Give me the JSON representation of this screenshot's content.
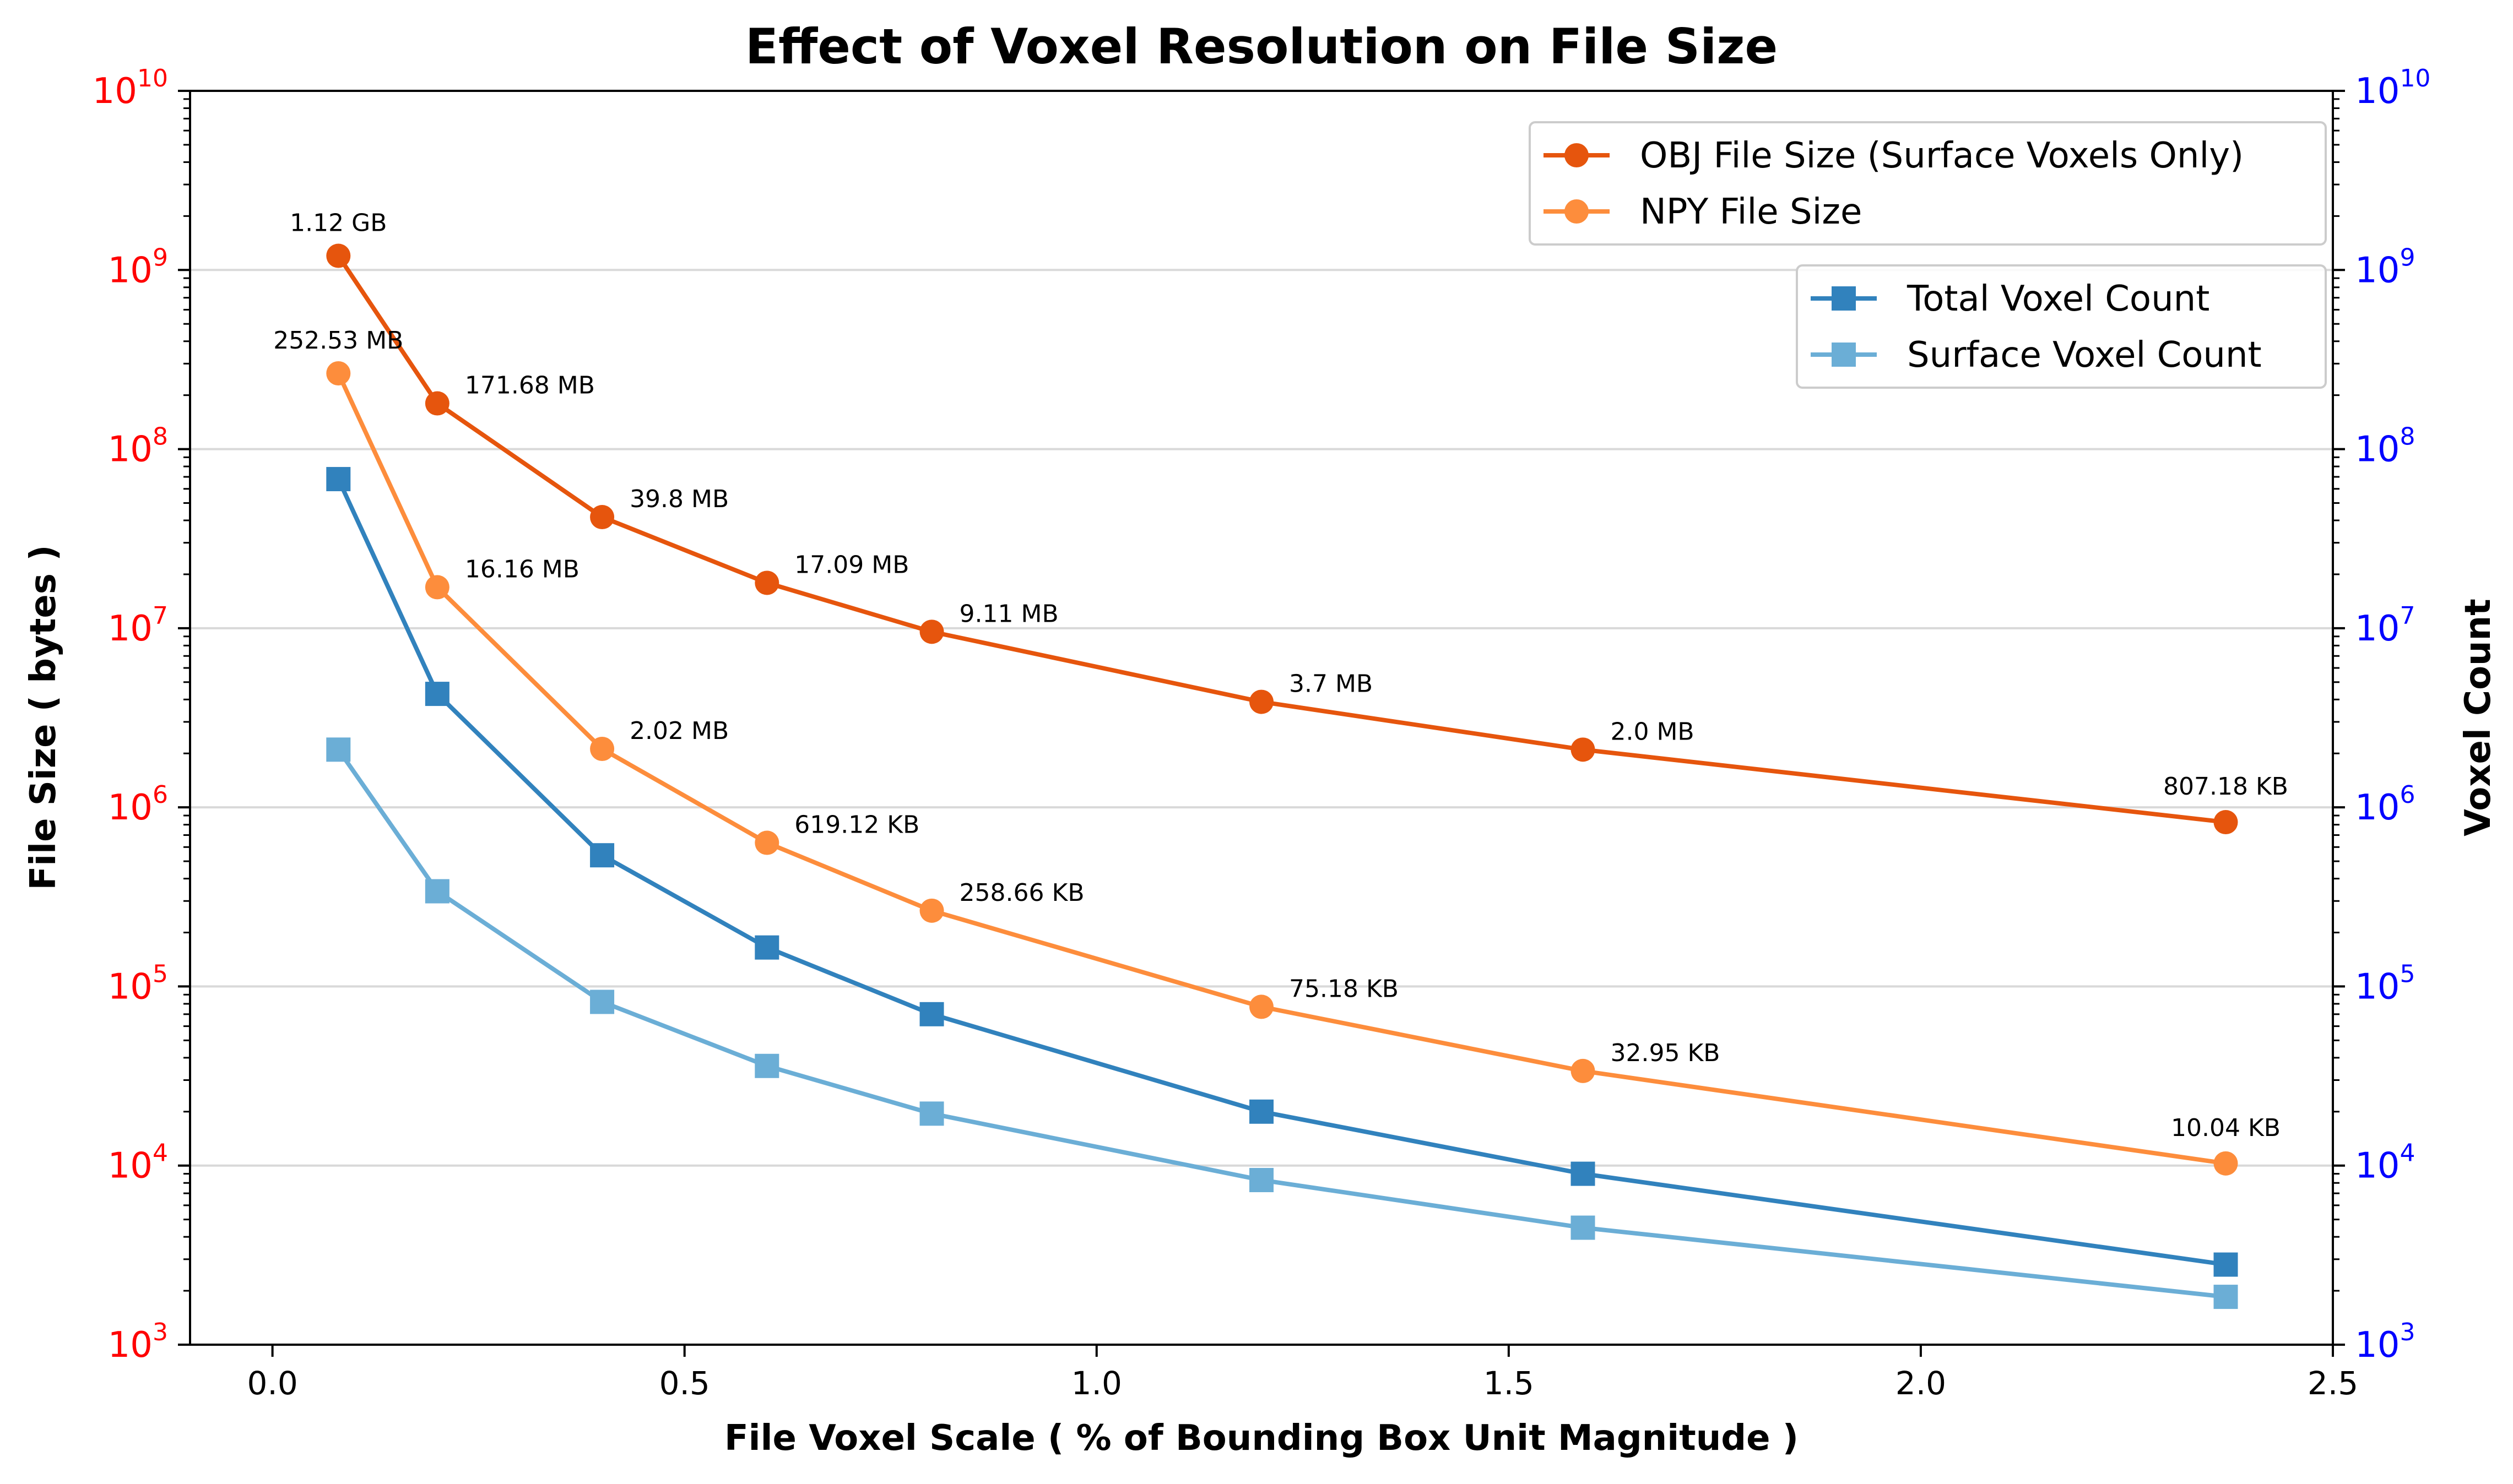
{
  "chart_data": {
    "type": "line",
    "title": "Effect of Voxel Resolution on File Size",
    "xlabel": "File Voxel Scale ( % of Bounding Box Unit Magnitude )",
    "ylabel_left": "File Size ( bytes )",
    "ylabel_right": "Voxel Count",
    "xlim": [
      -0.1,
      2.5
    ],
    "ylim_left": [
      1000,
      10000000000
    ],
    "ylim_right": [
      1000,
      10000000000
    ],
    "yscale": "log",
    "grid": "horizontal",
    "x_ticks": [
      "0.0",
      "0.5",
      "1.0",
      "1.5",
      "2.0",
      "2.5"
    ],
    "y_ticks": [
      {
        "base": "10",
        "exp": "3"
      },
      {
        "base": "10",
        "exp": "4"
      },
      {
        "base": "10",
        "exp": "5"
      },
      {
        "base": "10",
        "exp": "6"
      },
      {
        "base": "10",
        "exp": "7"
      },
      {
        "base": "10",
        "exp": "8"
      },
      {
        "base": "10",
        "exp": "9"
      },
      {
        "base": "10",
        "exp": "10"
      }
    ],
    "x": [
      0.08,
      0.2,
      0.4,
      0.6,
      0.8,
      1.2,
      1.59,
      2.37
    ],
    "series": [
      {
        "name": "OBJ File Size (Surface Voxels Only)",
        "axis": "left",
        "marker": "circle",
        "color": "#e6550d",
        "values": [
          1200000000,
          180000000,
          41730000,
          17920000,
          9550000,
          3880000,
          2100000,
          826550
        ],
        "labels": [
          "1.12 GB",
          "171.68 MB",
          "39.8 MB",
          "17.09 MB",
          "9.11 MB",
          "3.7 MB",
          "2.0 MB",
          "807.18 KB"
        ]
      },
      {
        "name": "NPY File Size",
        "axis": "left",
        "marker": "circle",
        "color": "#fd8d3c",
        "values": [
          264800000,
          16940000,
          2120000,
          634000,
          264870,
          76980,
          33740,
          10280
        ],
        "labels": [
          "252.53 MB",
          "16.16 MB",
          "2.02 MB",
          "619.12 KB",
          "258.66 KB",
          "75.18 KB",
          "32.95 KB",
          "10.04 KB"
        ]
      },
      {
        "name": "Total Voxel Count",
        "axis": "right",
        "marker": "square",
        "color": "#3182bd",
        "values": [
          68000000,
          4300000,
          540000,
          165000,
          70000,
          20000,
          9000,
          2800
        ]
      },
      {
        "name": "Surface Voxel Count",
        "axis": "right",
        "marker": "square",
        "color": "#6baed6",
        "values": [
          2100000,
          340000,
          82000,
          36000,
          19500,
          8300,
          4500,
          1850
        ]
      }
    ],
    "legends": [
      {
        "location": "top-right",
        "entries": [
          "OBJ File Size (Surface Voxels Only)",
          "NPY File Size"
        ]
      },
      {
        "location": "upper-right",
        "entries": [
          "Total Voxel Count",
          "Surface Voxel Count"
        ]
      }
    ]
  }
}
